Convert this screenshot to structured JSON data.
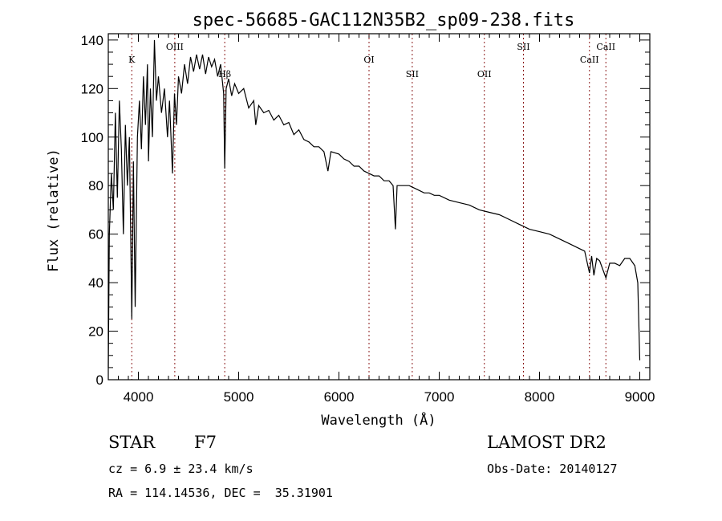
{
  "chart_data": {
    "type": "line",
    "title": "spec-56685-GAC112N35B2_sp09-238.fits",
    "xlabel": "Wavelength (Å)",
    "ylabel": "Flux (relative)",
    "xlim": [
      3700,
      9100
    ],
    "ylim": [
      0,
      142.6
    ],
    "xticks": [
      4000,
      5000,
      6000,
      7000,
      8000,
      9000
    ],
    "yticks": [
      0,
      20,
      40,
      60,
      80,
      100,
      120,
      140
    ],
    "grid": false,
    "line_color": "#000000",
    "marker_color": "#8b1a1a",
    "line_markers": [
      {
        "label": "K",
        "wavelength": 3934,
        "label_level": 2
      },
      {
        "label": "OIII",
        "wavelength": 4363,
        "label_level": 1
      },
      {
        "label": "Hβ",
        "wavelength": 4861,
        "label_level": 3
      },
      {
        "label": "OI",
        "wavelength": 6300,
        "label_level": 2
      },
      {
        "label": "SII",
        "wavelength": 6731,
        "label_level": 3
      },
      {
        "label": "OII",
        "wavelength": 7450,
        "label_level": 3
      },
      {
        "label": "SII",
        "wavelength": 7840,
        "label_level": 1
      },
      {
        "label": "CaII",
        "wavelength": 8498,
        "label_level": 2
      },
      {
        "label": "CaII",
        "wavelength": 8662,
        "label_level": 1
      }
    ],
    "series": [
      {
        "name": "flux",
        "points": [
          [
            3700,
            5
          ],
          [
            3710,
            60
          ],
          [
            3730,
            85
          ],
          [
            3750,
            70
          ],
          [
            3770,
            110
          ],
          [
            3790,
            75
          ],
          [
            3810,
            115
          ],
          [
            3830,
            95
          ],
          [
            3850,
            60
          ],
          [
            3870,
            105
          ],
          [
            3890,
            80
          ],
          [
            3910,
            100
          ],
          [
            3934,
            25
          ],
          [
            3950,
            90
          ],
          [
            3968,
            30
          ],
          [
            3990,
            100
          ],
          [
            4010,
            115
          ],
          [
            4030,
            95
          ],
          [
            4050,
            125
          ],
          [
            4070,
            105
          ],
          [
            4090,
            130
          ],
          [
            4101,
            90
          ],
          [
            4120,
            120
          ],
          [
            4140,
            100
          ],
          [
            4160,
            140
          ],
          [
            4180,
            115
          ],
          [
            4200,
            125
          ],
          [
            4230,
            110
          ],
          [
            4260,
            120
          ],
          [
            4290,
            100
          ],
          [
            4310,
            115
          ],
          [
            4340,
            85
          ],
          [
            4360,
            118
          ],
          [
            4380,
            105
          ],
          [
            4400,
            125
          ],
          [
            4430,
            118
          ],
          [
            4460,
            130
          ],
          [
            4490,
            122
          ],
          [
            4520,
            133
          ],
          [
            4550,
            127
          ],
          [
            4580,
            134
          ],
          [
            4610,
            128
          ],
          [
            4640,
            134
          ],
          [
            4670,
            126
          ],
          [
            4700,
            133
          ],
          [
            4730,
            129
          ],
          [
            4760,
            132
          ],
          [
            4790,
            125
          ],
          [
            4820,
            130
          ],
          [
            4850,
            118
          ],
          [
            4861,
            87
          ],
          [
            4875,
            120
          ],
          [
            4900,
            124
          ],
          [
            4930,
            117
          ],
          [
            4960,
            122
          ],
          [
            5000,
            118
          ],
          [
            5050,
            120
          ],
          [
            5100,
            112
          ],
          [
            5150,
            115
          ],
          [
            5170,
            105
          ],
          [
            5200,
            113
          ],
          [
            5250,
            110
          ],
          [
            5300,
            111
          ],
          [
            5350,
            107
          ],
          [
            5400,
            109
          ],
          [
            5450,
            105
          ],
          [
            5500,
            106
          ],
          [
            5550,
            101
          ],
          [
            5600,
            103
          ],
          [
            5650,
            99
          ],
          [
            5700,
            98
          ],
          [
            5750,
            96
          ],
          [
            5800,
            96
          ],
          [
            5850,
            94
          ],
          [
            5890,
            86
          ],
          [
            5920,
            94
          ],
          [
            6000,
            93
          ],
          [
            6050,
            91
          ],
          [
            6100,
            90
          ],
          [
            6150,
            88
          ],
          [
            6200,
            88
          ],
          [
            6250,
            86
          ],
          [
            6300,
            85
          ],
          [
            6350,
            84
          ],
          [
            6400,
            84
          ],
          [
            6450,
            82
          ],
          [
            6500,
            82
          ],
          [
            6540,
            80
          ],
          [
            6563,
            62
          ],
          [
            6580,
            80
          ],
          [
            6650,
            80
          ],
          [
            6700,
            80
          ],
          [
            6750,
            79
          ],
          [
            6800,
            78
          ],
          [
            6850,
            77
          ],
          [
            6900,
            77
          ],
          [
            6950,
            76
          ],
          [
            7000,
            76
          ],
          [
            7100,
            74
          ],
          [
            7200,
            73
          ],
          [
            7300,
            72
          ],
          [
            7400,
            70
          ],
          [
            7500,
            69
          ],
          [
            7600,
            68
          ],
          [
            7700,
            66
          ],
          [
            7800,
            64
          ],
          [
            7900,
            62
          ],
          [
            8000,
            61
          ],
          [
            8100,
            60
          ],
          [
            8200,
            58
          ],
          [
            8300,
            56
          ],
          [
            8400,
            54
          ],
          [
            8450,
            53
          ],
          [
            8498,
            44
          ],
          [
            8520,
            51
          ],
          [
            8542,
            43
          ],
          [
            8570,
            50
          ],
          [
            8600,
            49
          ],
          [
            8662,
            42
          ],
          [
            8700,
            48
          ],
          [
            8750,
            48
          ],
          [
            8800,
            47
          ],
          [
            8850,
            50
          ],
          [
            8900,
            50
          ],
          [
            8950,
            47
          ],
          [
            8980,
            40
          ],
          [
            9000,
            8
          ]
        ]
      }
    ]
  },
  "info": {
    "object_class": "STAR",
    "subclass": "F7",
    "survey": "LAMOST DR2",
    "redshift": "cz = 6.9 ± 23.4 km/s",
    "obs_date": "Obs-Date: 20140127",
    "coords": "RA = 114.14536, DEC =  35.31901"
  }
}
